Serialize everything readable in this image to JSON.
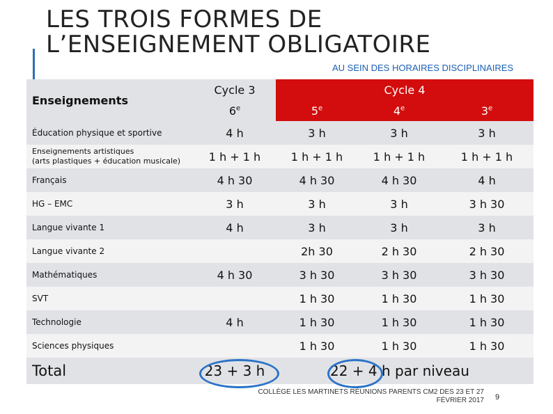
{
  "title": {
    "line1": "LES TROIS FORMES DE",
    "line2": "L’ENSEIGNEMENT OBLIGATOIRE"
  },
  "subtitle": "AU SEIN DES HORAIRES DISCIPLINAIRES",
  "table": {
    "label_header": "Enseignements",
    "cycle3_label": "Cycle 3",
    "cycle4_label": "Cycle 4",
    "levels": {
      "sixieme": "6",
      "cinquieme": "5",
      "quatrieme": "4",
      "troisieme": "3",
      "sup": "e"
    },
    "rows": [
      {
        "subject": "Éducation physique et sportive",
        "v6": "4 h",
        "v5": "3 h",
        "v4": "3 h",
        "v3": "3 h"
      },
      {
        "subject_line1": "Enseignements artistiques",
        "subject_line2": "(arts plastiques + éducation musicale)",
        "v6": "1 h + 1 h",
        "v5": "1 h + 1 h",
        "v4": "1 h + 1 h",
        "v3": "1 h + 1 h"
      },
      {
        "subject": "Français",
        "v6": "4 h 30",
        "v5": "4 h 30",
        "v4": "4 h 30",
        "v3": "4 h"
      },
      {
        "subject": "HG – EMC",
        "v6": "3 h",
        "v5": "3 h",
        "v4": "3 h",
        "v3": "3 h 30"
      },
      {
        "subject": "Langue vivante 1",
        "v6": "4 h",
        "v5": "3 h",
        "v4": "3 h",
        "v3": "3 h"
      },
      {
        "subject": "Langue vivante 2",
        "v6": "",
        "v5": "2h 30",
        "v4": "2 h 30",
        "v3": "2 h 30"
      },
      {
        "subject": "Mathématiques",
        "v6": "4 h 30",
        "v5": "3 h 30",
        "v4": "3 h 30",
        "v3": "3 h 30"
      },
      {
        "subject": "SVT",
        "v6": "",
        "v5": "1 h 30",
        "v4": "1 h 30",
        "v3": "1 h 30"
      },
      {
        "subject": "Technologie",
        "v6": "4 h",
        "v5": "1 h 30",
        "v4": "1 h 30",
        "v3": "1 h 30"
      },
      {
        "subject": "Sciences physiques",
        "v6": "",
        "v5": "1 h 30",
        "v4": "1 h 30",
        "v3": "1 h 30"
      }
    ],
    "total_label": "Total",
    "total_cycle3": "23 + 3 h",
    "total_cycle4": "22 + 4 h  par niveau"
  },
  "footer": {
    "line1": "COLLÈGE LES MARTINETS RÉUNIONS PARENTS CM2 DES 23 ET 27",
    "line2": "FÉVRIER 2017"
  },
  "page_number": "9",
  "colors": {
    "accent_blue": "#2b74c7",
    "cycle4_red": "#d30d0d",
    "header_gray": "#e1e2e6"
  }
}
